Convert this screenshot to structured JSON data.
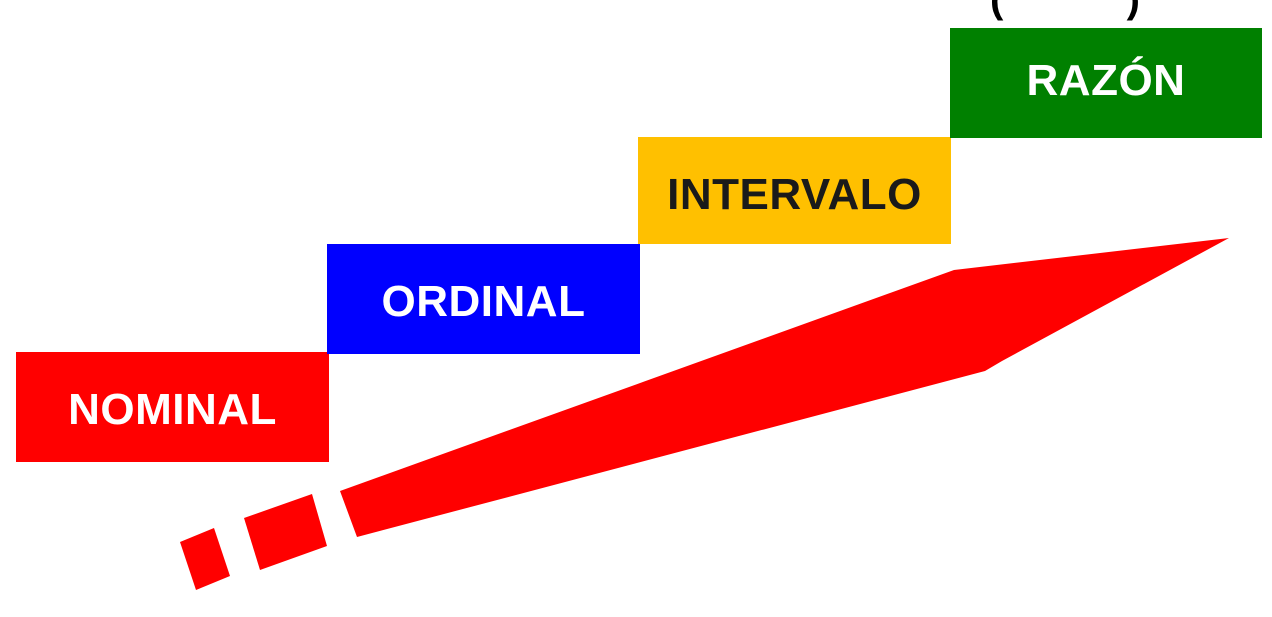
{
  "diagram": {
    "title_partial": "( )",
    "levels": [
      {
        "label": "NOMINAL",
        "bg": "#ff0000",
        "fg": "#ffffff"
      },
      {
        "label": "ORDINAL",
        "bg": "#0000ff",
        "fg": "#ffffff"
      },
      {
        "label": "INTERVALO",
        "bg": "#ffc000",
        "fg": "#1a1a1a"
      },
      {
        "label": "RAZÓN",
        "bg": "#008000",
        "fg": "#ffffff"
      }
    ],
    "arrow": {
      "color": "#ff0000",
      "icon": "dashed-upward-arrow-icon"
    }
  }
}
